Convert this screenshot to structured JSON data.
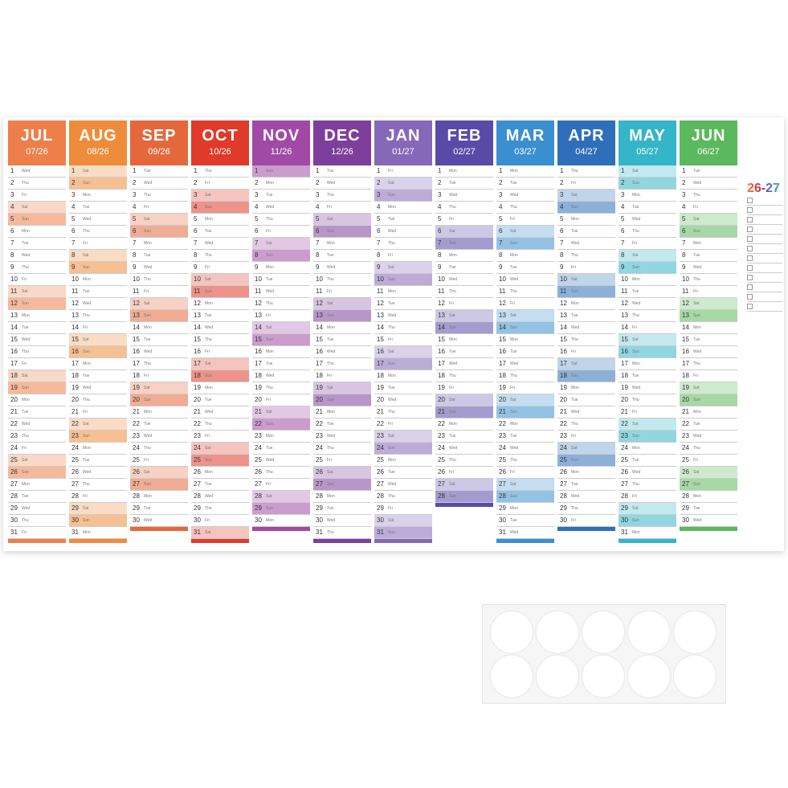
{
  "poster": {
    "year_label": "26-27",
    "months": [
      {
        "name": "JUL",
        "code": "07/26",
        "color": "#ee7f4a",
        "days": [
          1,
          2,
          3,
          4,
          5,
          6,
          7,
          8,
          9,
          10,
          11,
          12,
          13,
          14,
          15,
          16,
          17,
          18,
          19,
          20,
          21,
          22,
          23,
          24,
          25,
          26,
          27,
          28,
          29,
          30,
          31
        ],
        "weekdays": [
          "Wed",
          "Thu",
          "Fri",
          "Sat",
          "Sun",
          "Mon",
          "Tue",
          "Wed",
          "Thu",
          "Fri",
          "Sat",
          "Sun",
          "Mon",
          "Tue",
          "Wed",
          "Thu",
          "Fri",
          "Sat",
          "Sun",
          "Mon",
          "Tue",
          "Wed",
          "Thu",
          "Fri",
          "Sat",
          "Sun",
          "Mon",
          "Tue",
          "Wed",
          "Thu",
          "Fri"
        ]
      },
      {
        "name": "AUG",
        "code": "08/26",
        "color": "#ef8c3b",
        "days": [
          1,
          2,
          3,
          4,
          5,
          6,
          7,
          8,
          9,
          10,
          11,
          12,
          13,
          14,
          15,
          16,
          17,
          18,
          19,
          20,
          21,
          22,
          23,
          24,
          25,
          26,
          27,
          28,
          29,
          30,
          31
        ],
        "weekdays": [
          "Sat",
          "Sun",
          "Mon",
          "Tue",
          "Wed",
          "Thu",
          "Fri",
          "Sat",
          "Sun",
          "Mon",
          "Tue",
          "Wed",
          "Thu",
          "Fri",
          "Sat",
          "Sun",
          "Mon",
          "Tue",
          "Wed",
          "Thu",
          "Fri",
          "Sat",
          "Sun",
          "Mon",
          "Tue",
          "Wed",
          "Thu",
          "Fri",
          "Sat",
          "Sun",
          "Mon"
        ]
      },
      {
        "name": "SEP",
        "code": "09/26",
        "color": "#e4683c",
        "days": [
          1,
          2,
          3,
          4,
          5,
          6,
          7,
          8,
          9,
          10,
          11,
          12,
          13,
          14,
          15,
          16,
          17,
          18,
          19,
          20,
          21,
          22,
          23,
          24,
          25,
          26,
          27,
          28,
          29,
          30
        ],
        "weekdays": [
          "Tue",
          "Wed",
          "Thu",
          "Fri",
          "Sat",
          "Sun",
          "Mon",
          "Tue",
          "Wed",
          "Thu",
          "Fri",
          "Sat",
          "Sun",
          "Mon",
          "Tue",
          "Wed",
          "Thu",
          "Fri",
          "Sat",
          "Sun",
          "Mon",
          "Tue",
          "Wed",
          "Thu",
          "Fri",
          "Sat",
          "Sun",
          "Mon",
          "Tue",
          "Wed"
        ]
      },
      {
        "name": "OCT",
        "code": "10/26",
        "color": "#df3a2a",
        "days": [
          1,
          2,
          3,
          4,
          5,
          6,
          7,
          8,
          9,
          10,
          11,
          12,
          13,
          14,
          15,
          16,
          17,
          18,
          19,
          20,
          21,
          22,
          23,
          24,
          25,
          26,
          27,
          28,
          29,
          30,
          31
        ],
        "weekdays": [
          "Thu",
          "Fri",
          "Sat",
          "Sun",
          "Mon",
          "Tue",
          "Wed",
          "Thu",
          "Fri",
          "Sat",
          "Sun",
          "Mon",
          "Tue",
          "Wed",
          "Thu",
          "Fri",
          "Sat",
          "Sun",
          "Mon",
          "Tue",
          "Wed",
          "Thu",
          "Fri",
          "Sat",
          "Sun",
          "Mon",
          "Tue",
          "Wed",
          "Thu",
          "Fri",
          "Sat"
        ]
      },
      {
        "name": "NOV",
        "code": "11/26",
        "color": "#a04aa6",
        "days": [
          1,
          2,
          3,
          4,
          5,
          6,
          7,
          8,
          9,
          10,
          11,
          12,
          13,
          14,
          15,
          16,
          17,
          18,
          19,
          20,
          21,
          22,
          23,
          24,
          25,
          26,
          27,
          28,
          29,
          30
        ],
        "weekdays": [
          "Sun",
          "Mon",
          "Tue",
          "Wed",
          "Thu",
          "Fri",
          "Sat",
          "Sun",
          "Mon",
          "Tue",
          "Wed",
          "Thu",
          "Fri",
          "Sat",
          "Sun",
          "Mon",
          "Tue",
          "Wed",
          "Thu",
          "Fri",
          "Sat",
          "Sun",
          "Mon",
          "Tue",
          "Wed",
          "Thu",
          "Fri",
          "Sat",
          "Sun",
          "Mon"
        ]
      },
      {
        "name": "DEC",
        "code": "12/26",
        "color": "#7e3f9c",
        "days": [
          1,
          2,
          3,
          4,
          5,
          6,
          7,
          8,
          9,
          10,
          11,
          12,
          13,
          14,
          15,
          16,
          17,
          18,
          19,
          20,
          21,
          22,
          23,
          24,
          25,
          26,
          27,
          28,
          29,
          30,
          31
        ],
        "weekdays": [
          "Tue",
          "Wed",
          "Thu",
          "Fri",
          "Sat",
          "Sun",
          "Mon",
          "Tue",
          "Wed",
          "Thu",
          "Fri",
          "Sat",
          "Sun",
          "Mon",
          "Tue",
          "Wed",
          "Thu",
          "Fri",
          "Sat",
          "Sun",
          "Mon",
          "Tue",
          "Wed",
          "Thu",
          "Fri",
          "Sat",
          "Sun",
          "Mon",
          "Tue",
          "Wed",
          "Thu"
        ]
      },
      {
        "name": "JAN",
        "code": "01/27",
        "color": "#8668b8",
        "days": [
          1,
          2,
          3,
          4,
          5,
          6,
          7,
          8,
          9,
          10,
          11,
          12,
          13,
          14,
          15,
          16,
          17,
          18,
          19,
          20,
          21,
          22,
          23,
          24,
          25,
          26,
          27,
          28,
          29,
          30,
          31
        ],
        "weekdays": [
          "Fri",
          "Sat",
          "Sun",
          "Mon",
          "Tue",
          "Wed",
          "Thu",
          "Fri",
          "Sat",
          "Sun",
          "Mon",
          "Tue",
          "Wed",
          "Thu",
          "Fri",
          "Sat",
          "Sun",
          "Mon",
          "Tue",
          "Wed",
          "Thu",
          "Fri",
          "Sat",
          "Sun",
          "Mon",
          "Tue",
          "Wed",
          "Thu",
          "Fri",
          "Sat",
          "Sun"
        ]
      },
      {
        "name": "FEB",
        "code": "02/27",
        "color": "#5a4aa8",
        "days": [
          1,
          2,
          3,
          4,
          5,
          6,
          7,
          8,
          9,
          10,
          11,
          12,
          13,
          14,
          15,
          16,
          17,
          18,
          19,
          20,
          21,
          22,
          23,
          24,
          25,
          26,
          27,
          28
        ],
        "weekdays": [
          "Mon",
          "Tue",
          "Wed",
          "Thu",
          "Fri",
          "Sat",
          "Sun",
          "Mon",
          "Tue",
          "Wed",
          "Thu",
          "Fri",
          "Sat",
          "Sun",
          "Mon",
          "Tue",
          "Wed",
          "Thu",
          "Fri",
          "Sat",
          "Sun",
          "Mon",
          "Tue",
          "Wed",
          "Thu",
          "Fri",
          "Sat",
          "Sun"
        ]
      },
      {
        "name": "MAR",
        "code": "03/27",
        "color": "#3a8fd0",
        "days": [
          1,
          2,
          3,
          4,
          5,
          6,
          7,
          8,
          9,
          10,
          11,
          12,
          13,
          14,
          15,
          16,
          17,
          18,
          19,
          20,
          21,
          22,
          23,
          24,
          25,
          26,
          27,
          28,
          29,
          30,
          31
        ],
        "weekdays": [
          "Mon",
          "Tue",
          "Wed",
          "Thu",
          "Fri",
          "Sat",
          "Sun",
          "Mon",
          "Tue",
          "Wed",
          "Thu",
          "Fri",
          "Sat",
          "Sun",
          "Mon",
          "Tue",
          "Wed",
          "Thu",
          "Fri",
          "Sat",
          "Sun",
          "Mon",
          "Tue",
          "Wed",
          "Thu",
          "Fri",
          "Sat",
          "Sun",
          "Mon",
          "Tue",
          "Wed"
        ]
      },
      {
        "name": "APR",
        "code": "04/27",
        "color": "#2f6fba",
        "days": [
          1,
          2,
          3,
          4,
          5,
          6,
          7,
          8,
          9,
          10,
          11,
          12,
          13,
          14,
          15,
          16,
          17,
          18,
          19,
          20,
          21,
          22,
          23,
          24,
          25,
          26,
          27,
          28,
          29,
          30
        ],
        "weekdays": [
          "Thu",
          "Fri",
          "Sat",
          "Sun",
          "Mon",
          "Tue",
          "Wed",
          "Thu",
          "Fri",
          "Sat",
          "Sun",
          "Mon",
          "Tue",
          "Wed",
          "Thu",
          "Fri",
          "Sat",
          "Sun",
          "Mon",
          "Tue",
          "Wed",
          "Thu",
          "Fri",
          "Sat",
          "Sun",
          "Mon",
          "Tue",
          "Wed",
          "Thu",
          "Fri"
        ]
      },
      {
        "name": "MAY",
        "code": "05/27",
        "color": "#35b5c8",
        "days": [
          1,
          2,
          3,
          4,
          5,
          6,
          7,
          8,
          9,
          10,
          11,
          12,
          13,
          14,
          15,
          16,
          17,
          18,
          19,
          20,
          21,
          22,
          23,
          24,
          25,
          26,
          27,
          28,
          29,
          30,
          31
        ],
        "weekdays": [
          "Sat",
          "Sun",
          "Mon",
          "Tue",
          "Wed",
          "Thu",
          "Fri",
          "Sat",
          "Sun",
          "Mon",
          "Tue",
          "Wed",
          "Thu",
          "Fri",
          "Sat",
          "Sun",
          "Mon",
          "Tue",
          "Wed",
          "Thu",
          "Fri",
          "Sat",
          "Sun",
          "Mon",
          "Tue",
          "Wed",
          "Thu",
          "Fri",
          "Sat",
          "Sun",
          "Mon"
        ]
      },
      {
        "name": "JUN",
        "code": "06/27",
        "color": "#5cb85c",
        "days": [
          1,
          2,
          3,
          4,
          5,
          6,
          7,
          8,
          9,
          10,
          11,
          12,
          13,
          14,
          15,
          16,
          17,
          18,
          19,
          20,
          21,
          22,
          23,
          24,
          25,
          26,
          27,
          28,
          29,
          30
        ],
        "weekdays": [
          "Tue",
          "Wed",
          "Thu",
          "Fri",
          "Sat",
          "Sun",
          "Mon",
          "Tue",
          "Wed",
          "Thu",
          "Fri",
          "Sat",
          "Sun",
          "Mon",
          "Tue",
          "Wed",
          "Thu",
          "Fri",
          "Sat",
          "Sun",
          "Mon",
          "Tue",
          "Wed",
          "Thu",
          "Fri",
          "Sat",
          "Sun",
          "Mon",
          "Tue",
          "Wed"
        ]
      }
    ]
  }
}
